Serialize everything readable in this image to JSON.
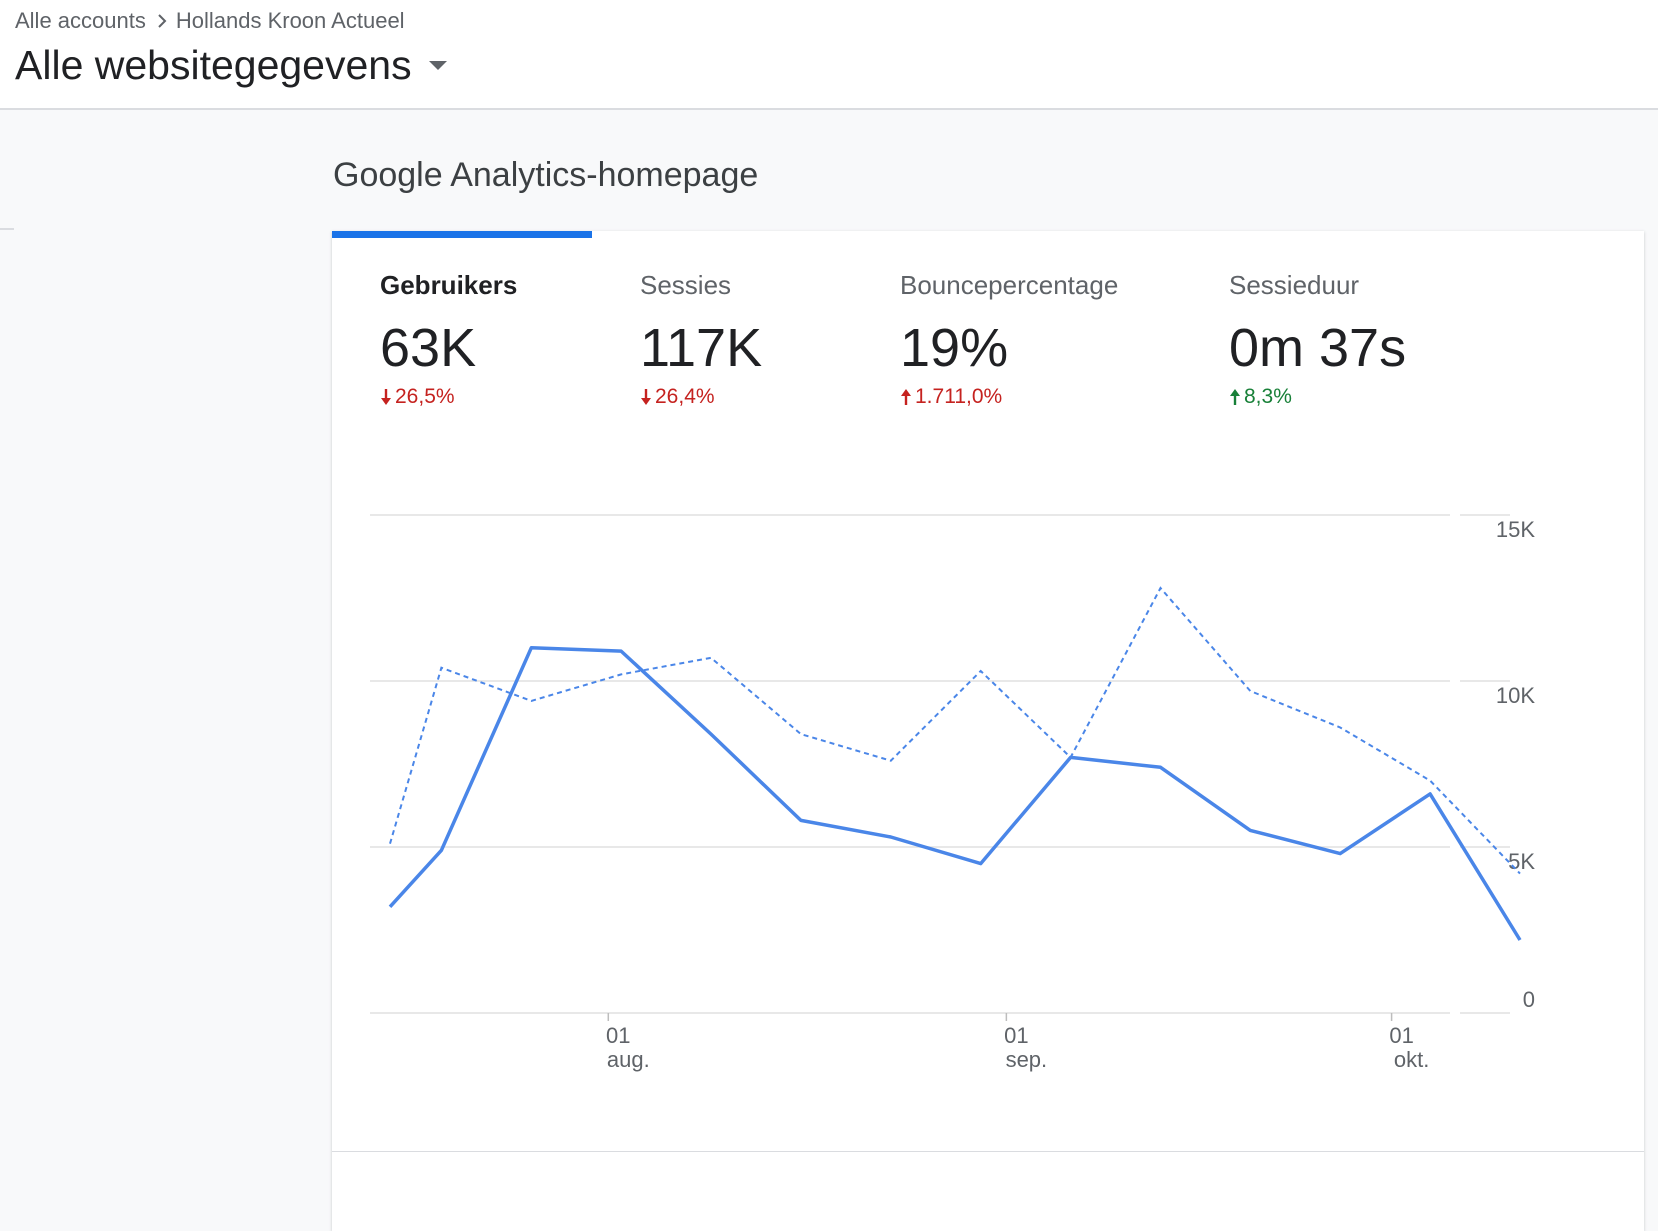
{
  "breadcrumb": {
    "account": "Alle accounts",
    "property": "Hollands Kroon Actueel"
  },
  "view_selector": {
    "title": "Alle websitegegevens",
    "icon": "caret-down-icon"
  },
  "section_title": "Google Analytics-homepage",
  "metrics": [
    {
      "label": "Gebruikers",
      "value": "63K",
      "delta": "26,5%",
      "direction": "down",
      "color": "#c5221f",
      "active": true
    },
    {
      "label": "Sessies",
      "value": "117K",
      "delta": "26,4%",
      "direction": "down",
      "color": "#c5221f",
      "active": false
    },
    {
      "label": "Bouncepercentage",
      "value": "19%",
      "delta": "1.711,0%",
      "direction": "up",
      "color": "#c5221f",
      "active": false
    },
    {
      "label": "Sessieduur",
      "value": "0m 37s",
      "delta": "8,3%",
      "direction": "up",
      "color": "#188038",
      "active": false
    }
  ],
  "colors": {
    "accent": "#1a73e8",
    "line": "#4a86e8",
    "negative": "#c5221f",
    "positive": "#188038"
  },
  "chart_data": {
    "type": "line",
    "x": [
      "2019-07-15",
      "2019-07-19",
      "2019-07-26",
      "2019-08-02",
      "2019-08-09",
      "2019-08-16",
      "2019-08-23",
      "2019-08-30",
      "2019-09-06",
      "2019-09-13",
      "2019-09-20",
      "2019-09-27",
      "2019-10-04",
      "2019-10-11"
    ],
    "series": [
      {
        "style": "solid",
        "values": [
          3200,
          4900,
          11000,
          10900,
          8400,
          5800,
          5300,
          4500,
          7700,
          7400,
          5500,
          4800,
          6600,
          2200
        ]
      },
      {
        "style": "dashed",
        "values": [
          5100,
          10400,
          9400,
          10200,
          10700,
          8400,
          7600,
          10300,
          7700,
          12800,
          9700,
          8600,
          7000,
          4200
        ]
      }
    ],
    "y_ticks": [
      "0",
      "5K",
      "10K",
      "15K"
    ],
    "ylim": [
      0,
      15000
    ],
    "x_ticks": [
      {
        "day": "01",
        "month": "aug.",
        "date": "2019-08-01"
      },
      {
        "day": "01",
        "month": "sep.",
        "date": "2019-09-01"
      },
      {
        "day": "01",
        "month": "okt.",
        "date": "2019-10-01"
      }
    ],
    "grid": true,
    "y_axis_side": "right"
  }
}
